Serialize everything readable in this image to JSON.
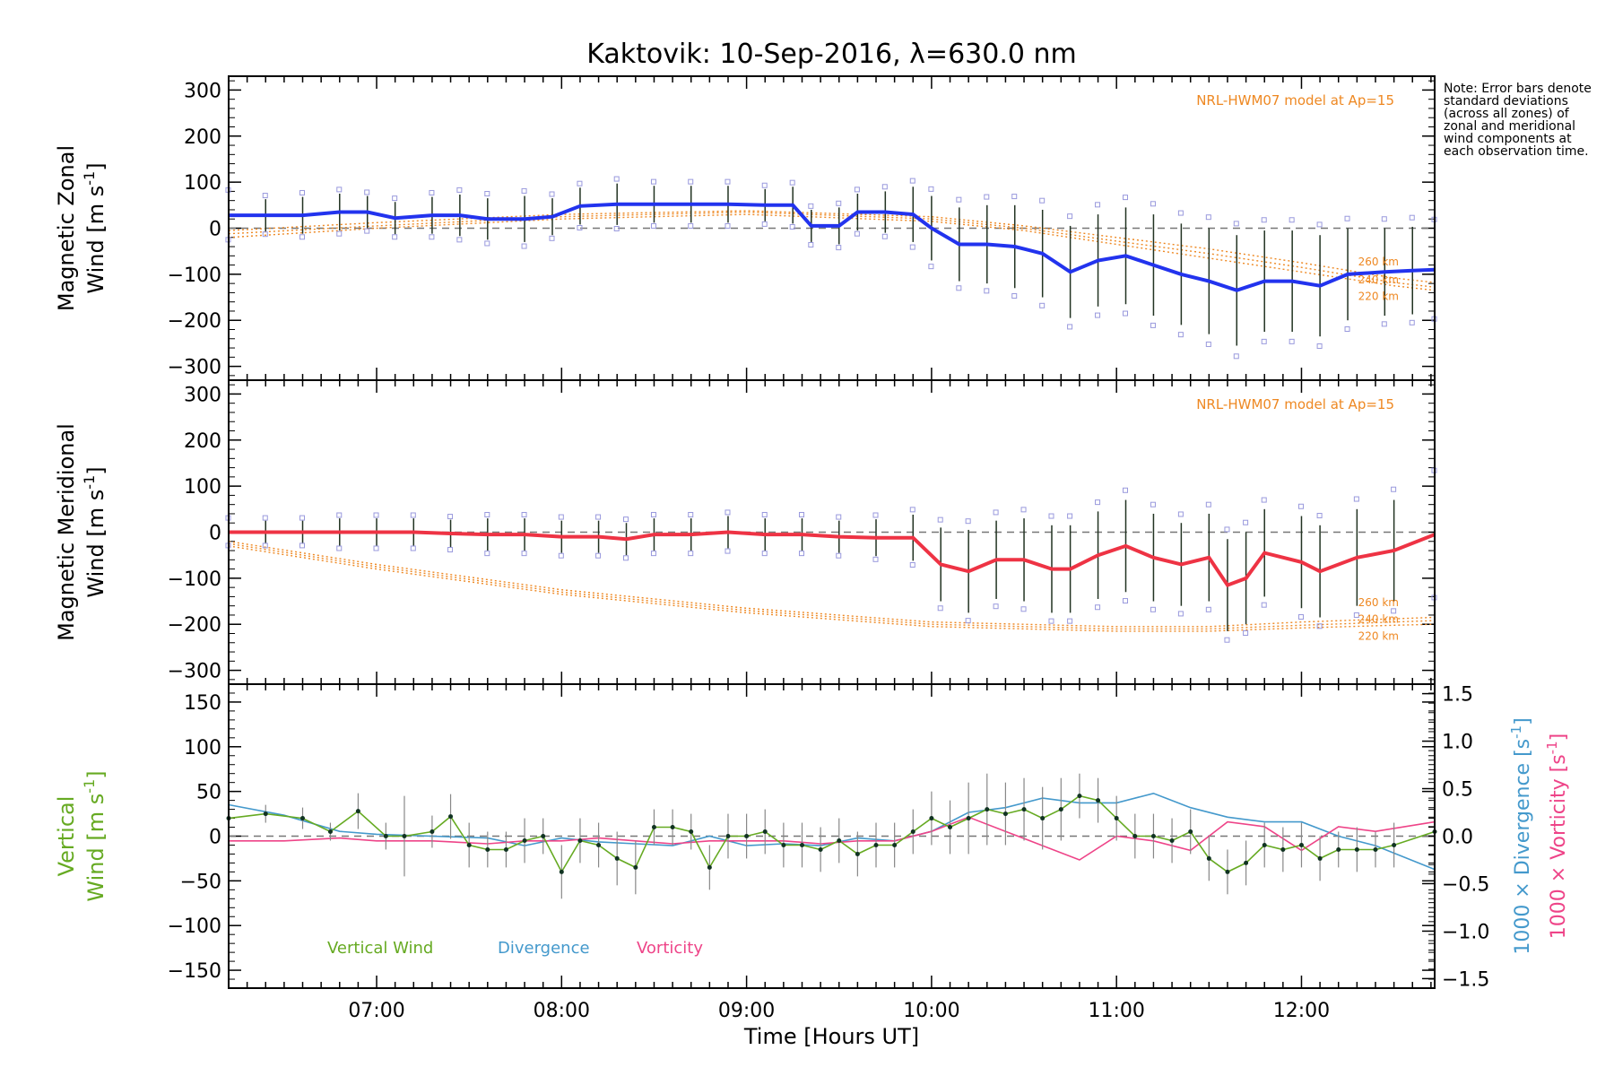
{
  "chart_data": {
    "title": "Kaktovik: 10-Sep-2016, λ=630.0 nm",
    "note": "Note: Error bars denote standard deviations (across all zones) of zonal and meridional wind components at each observation time.",
    "xlabel": "Time [Hours UT]",
    "x_ticks": [
      "07:00",
      "08:00",
      "09:00",
      "10:00",
      "11:00",
      "12:00"
    ],
    "x_tick_values": [
      7,
      8,
      9,
      10,
      11,
      12
    ],
    "xlim": [
      6.2,
      12.72
    ],
    "panels": [
      {
        "id": "zonal",
        "type": "line",
        "ylabel_line1": "Magnetic Zonal",
        "ylabel_line2_prefix": "Wind [m s",
        "ylabel_sup": "-1",
        "ylabel_suffix": "]",
        "ylim": [
          -330,
          330
        ],
        "y_ticks": [
          -300,
          -200,
          -100,
          0,
          100,
          200,
          300
        ],
        "y_tick_labels": [
          "−300",
          "−200",
          "−100",
          "0",
          "100",
          "200",
          "300"
        ],
        "model_label": "NRL-HWM07 model at Ap=15",
        "model_alt_labels": [
          "260 km",
          "240 km",
          "220 km"
        ],
        "line_color": "#2233ee",
        "series": {
          "x": [
            6.2,
            6.4,
            6.6,
            6.8,
            6.95,
            7.1,
            7.3,
            7.45,
            7.6,
            7.8,
            7.95,
            8.1,
            8.3,
            8.5,
            8.7,
            8.9,
            9.1,
            9.25,
            9.35,
            9.5,
            9.6,
            9.75,
            9.9,
            10.0,
            10.15,
            10.3,
            10.45,
            10.6,
            10.75,
            10.9,
            11.05,
            11.2,
            11.35,
            11.5,
            11.65,
            11.8,
            11.95,
            12.1,
            12.25,
            12.45,
            12.6,
            12.72
          ],
          "y": [
            28,
            28,
            28,
            35,
            35,
            22,
            28,
            28,
            20,
            20,
            25,
            48,
            52,
            52,
            52,
            52,
            50,
            50,
            5,
            5,
            35,
            35,
            30,
            0,
            -35,
            -35,
            -40,
            -55,
            -95,
            -70,
            -60,
            -80,
            -100,
            -115,
            -135,
            -115,
            -115,
            -125,
            -100,
            -95,
            -92,
            -90
          ],
          "err": [
            45,
            35,
            40,
            40,
            35,
            35,
            40,
            45,
            45,
            50,
            40,
            40,
            45,
            40,
            40,
            40,
            35,
            40,
            35,
            40,
            40,
            45,
            60,
            70,
            80,
            85,
            90,
            95,
            100,
            100,
            105,
            110,
            110,
            115,
            120,
            110,
            110,
            110,
            100,
            95,
            95,
            90
          ]
        },
        "model_curves": [
          {
            "x": [
              6.2,
              7,
              8,
              9,
              10,
              10.5,
              11,
              11.5,
              12,
              12.5,
              12.72
            ],
            "y": [
              -5,
              12,
              30,
              38,
              25,
              5,
              -20,
              -45,
              -75,
              -108,
              -118
            ]
          },
          {
            "x": [
              6.2,
              7,
              8,
              9,
              10,
              10.5,
              11,
              11.5,
              12,
              12.5,
              12.72
            ],
            "y": [
              -12,
              5,
              25,
              35,
              20,
              0,
              -28,
              -55,
              -85,
              -118,
              -128
            ]
          },
          {
            "x": [
              6.2,
              7,
              8,
              9,
              10,
              10.5,
              11,
              11.5,
              12,
              12.5,
              12.72
            ],
            "y": [
              -20,
              0,
              20,
              30,
              15,
              -5,
              -35,
              -65,
              -95,
              -125,
              -135
            ]
          }
        ]
      },
      {
        "id": "meridional",
        "type": "line",
        "ylabel_line1": "Magnetic Meridional",
        "ylabel_line2_prefix": "Wind [m s",
        "ylabel_sup": "-1",
        "ylabel_suffix": "]",
        "ylim": [
          -330,
          330
        ],
        "y_ticks": [
          -300,
          -200,
          -100,
          0,
          100,
          200,
          300
        ],
        "y_tick_labels": [
          "−300",
          "−200",
          "−100",
          "0",
          "100",
          "200",
          "300"
        ],
        "model_label": "NRL-HWM07 model at Ap=15",
        "model_alt_labels": [
          "260 km",
          "240 km",
          "220 km"
        ],
        "line_color": "#ee3344",
        "series": {
          "x": [
            6.2,
            6.4,
            6.6,
            6.8,
            7.0,
            7.2,
            7.4,
            7.6,
            7.8,
            8.0,
            8.2,
            8.35,
            8.5,
            8.7,
            8.9,
            9.1,
            9.3,
            9.5,
            9.7,
            9.9,
            10.05,
            10.2,
            10.35,
            10.5,
            10.65,
            10.75,
            10.9,
            11.05,
            11.2,
            11.35,
            11.5,
            11.6,
            11.7,
            11.8,
            12.0,
            12.1,
            12.3,
            12.5,
            12.72
          ],
          "y": [
            0,
            0,
            0,
            0,
            0,
            0,
            -3,
            -5,
            -5,
            -10,
            -10,
            -15,
            -5,
            -5,
            0,
            -5,
            -5,
            -10,
            -12,
            -12,
            -70,
            -85,
            -60,
            -60,
            -80,
            -80,
            -50,
            -30,
            -55,
            -70,
            -55,
            -115,
            -100,
            -45,
            -65,
            -85,
            -55,
            -40,
            -5
          ],
          "err": [
            25,
            25,
            25,
            30,
            30,
            30,
            30,
            35,
            35,
            35,
            35,
            35,
            35,
            35,
            35,
            35,
            35,
            35,
            40,
            50,
            80,
            90,
            85,
            90,
            95,
            95,
            95,
            100,
            95,
            90,
            95,
            100,
            100,
            95,
            100,
            100,
            105,
            110,
            115
          ]
        },
        "model_curves": [
          {
            "x": [
              6.2,
              7,
              8,
              9,
              10,
              11,
              11.5,
              12,
              12.5,
              12.72
            ],
            "y": [
              -20,
              -70,
              -125,
              -165,
              -195,
              -205,
              -205,
              -195,
              -188,
              -185
            ]
          },
          {
            "x": [
              6.2,
              7,
              8,
              9,
              10,
              11,
              11.5,
              12,
              12.5,
              12.72
            ],
            "y": [
              -25,
              -75,
              -130,
              -170,
              -200,
              -210,
              -210,
              -202,
              -195,
              -192
            ]
          },
          {
            "x": [
              6.2,
              7,
              8,
              9,
              10,
              11,
              11.5,
              12,
              12.5,
              12.72
            ],
            "y": [
              -30,
              -80,
              -135,
              -175,
              -205,
              -215,
              -215,
              -208,
              -202,
              -200
            ]
          }
        ]
      },
      {
        "id": "vertical",
        "type": "line",
        "ylabel_line1": "Vertical",
        "ylabel_line2_prefix": "Wind [m s",
        "ylabel_sup": "-1",
        "ylabel_suffix": "]",
        "ylabel_color": "#66aa22",
        "ylim": [
          -170,
          170
        ],
        "y_ticks": [
          -150,
          -100,
          -50,
          0,
          50,
          100,
          150
        ],
        "y_tick_labels": [
          "−150",
          "−100",
          "−50",
          "0",
          "50",
          "100",
          "150"
        ],
        "right_ylim": [
          -1.6,
          1.6
        ],
        "right_ticks": [
          -1.5,
          -1.0,
          -0.5,
          0.0,
          0.5,
          1.0,
          1.5
        ],
        "right_tick_labels": [
          "−1.5",
          "−1.0",
          "−0.5",
          "0.0",
          "0.5",
          "1.0",
          "1.5"
        ],
        "right_label_div_prefix": "1000 × Divergence [s",
        "right_label_vor_prefix": "1000 × Vorticity [s",
        "right_label_sup": "-1",
        "right_label_suffix": "]",
        "legend": [
          "Vertical Wind",
          "Divergence",
          "Vorticity"
        ],
        "series": [
          {
            "name": "Vertical Wind",
            "color": "#66aa22",
            "x": [
              6.2,
              6.4,
              6.6,
              6.75,
              6.9,
              7.05,
              7.15,
              7.3,
              7.4,
              7.5,
              7.6,
              7.7,
              7.8,
              7.9,
              8.0,
              8.1,
              8.2,
              8.3,
              8.4,
              8.5,
              8.6,
              8.7,
              8.8,
              8.9,
              9.0,
              9.1,
              9.2,
              9.3,
              9.4,
              9.5,
              9.6,
              9.7,
              9.8,
              9.9,
              10.0,
              10.1,
              10.2,
              10.3,
              10.4,
              10.5,
              10.6,
              10.7,
              10.8,
              10.9,
              11.0,
              11.1,
              11.2,
              11.3,
              11.4,
              11.5,
              11.6,
              11.7,
              11.8,
              11.9,
              12.0,
              12.1,
              12.2,
              12.3,
              12.4,
              12.5,
              12.72
            ],
            "y": [
              20,
              25,
              20,
              5,
              28,
              0,
              0,
              5,
              22,
              -10,
              -15,
              -15,
              -5,
              0,
              -40,
              -5,
              -10,
              -25,
              -35,
              10,
              10,
              5,
              -35,
              0,
              0,
              5,
              -10,
              -10,
              -15,
              -5,
              -20,
              -10,
              -10,
              5,
              20,
              10,
              20,
              30,
              25,
              30,
              20,
              30,
              45,
              40,
              20,
              0,
              0,
              -5,
              5,
              -25,
              -40,
              -30,
              -10,
              -15,
              -10,
              -25,
              -15,
              -15,
              -15,
              -10,
              5
            ],
            "err": [
              0,
              10,
              12,
              10,
              20,
              15,
              45,
              18,
              25,
              25,
              20,
              20,
              25,
              20,
              30,
              25,
              25,
              30,
              30,
              20,
              20,
              20,
              25,
              25,
              25,
              25,
              25,
              25,
              25,
              25,
              25,
              25,
              25,
              25,
              30,
              30,
              40,
              40,
              35,
              35,
              35,
              35,
              25,
              25,
              25,
              25,
              25,
              25,
              25,
              25,
              25,
              25,
              25,
              25,
              25,
              25,
              20,
              25,
              20,
              25,
              25
            ]
          },
          {
            "name": "Divergence",
            "color": "#4499cc",
            "x": [
              6.2,
              6.5,
              6.8,
              7.0,
              7.3,
              7.6,
              7.8,
              8.0,
              8.2,
              8.4,
              8.6,
              8.8,
              9.0,
              9.2,
              9.4,
              9.6,
              9.8,
              10.0,
              10.2,
              10.4,
              10.6,
              10.8,
              11.0,
              11.2,
              11.4,
              11.6,
              11.8,
              12.0,
              12.2,
              12.4,
              12.72
            ],
            "y": [
              0.33,
              0.22,
              0.05,
              0.02,
              0.0,
              -0.02,
              -0.1,
              -0.02,
              -0.06,
              -0.08,
              -0.1,
              0.0,
              -0.1,
              -0.08,
              -0.1,
              -0.02,
              -0.05,
              0.05,
              0.25,
              0.3,
              0.4,
              0.35,
              0.35,
              0.45,
              0.3,
              0.2,
              0.15,
              0.15,
              0.0,
              -0.1,
              -0.35
            ]
          },
          {
            "name": "Vorticity",
            "color": "#ee4488",
            "x": [
              6.2,
              6.5,
              6.8,
              7.0,
              7.3,
              7.6,
              7.8,
              8.0,
              8.2,
              8.4,
              8.6,
              8.8,
              9.0,
              9.2,
              9.4,
              9.6,
              9.8,
              10.0,
              10.2,
              10.4,
              10.6,
              10.8,
              11.0,
              11.2,
              11.4,
              11.6,
              11.8,
              12.0,
              12.2,
              12.4,
              12.72
            ],
            "y": [
              -0.05,
              -0.05,
              -0.02,
              -0.05,
              -0.05,
              -0.08,
              -0.05,
              -0.05,
              -0.02,
              -0.05,
              -0.08,
              -0.05,
              -0.05,
              -0.05,
              -0.08,
              -0.05,
              -0.05,
              0.05,
              0.2,
              0.05,
              -0.1,
              -0.25,
              0.0,
              -0.05,
              -0.15,
              0.15,
              0.1,
              -0.15,
              0.1,
              0.05,
              0.15
            ]
          }
        ]
      }
    ]
  }
}
